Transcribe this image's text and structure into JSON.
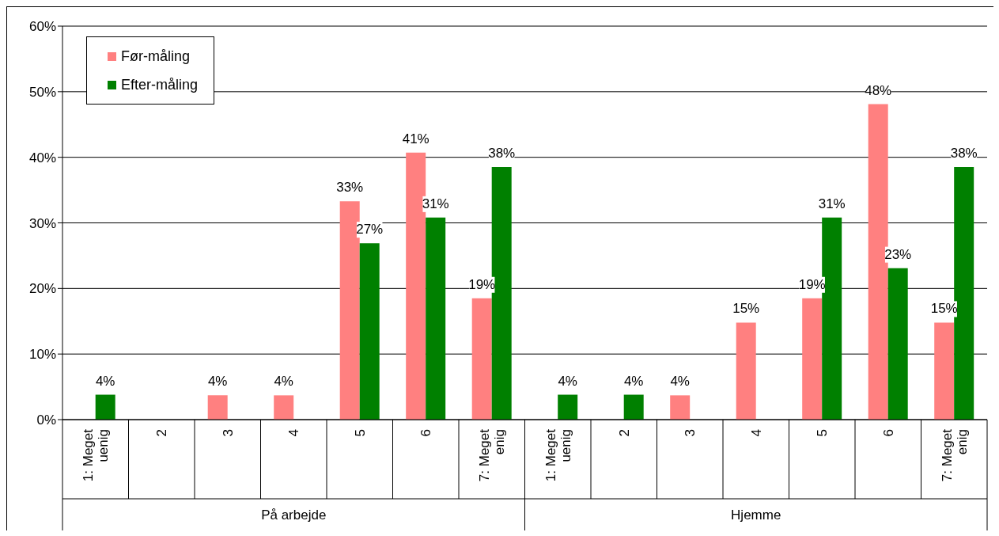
{
  "chart_data": {
    "type": "bar",
    "categories": [
      "1: Meget uenig",
      "2",
      "3",
      "4",
      "5",
      "6",
      "7: Meget enig",
      "1: Meget uenig",
      "2",
      "3",
      "4",
      "5",
      "6",
      "7: Meget enig"
    ],
    "series": [
      {
        "name": "Før-måling",
        "color": "#ff8080",
        "values": [
          null,
          null,
          3.7,
          3.7,
          33.3,
          40.7,
          18.5,
          null,
          null,
          3.7,
          14.8,
          18.5,
          48.1,
          14.8
        ],
        "value_labels": [
          null,
          null,
          "4%",
          "4%",
          "33%",
          "41%",
          "19%",
          null,
          null,
          "4%",
          "15%",
          "19%",
          "48%",
          "15%"
        ]
      },
      {
        "name": "Efter-måling",
        "color": "#008000",
        "values": [
          3.8,
          null,
          null,
          null,
          26.9,
          30.8,
          38.5,
          3.8,
          3.8,
          null,
          null,
          30.8,
          23.1,
          38.5
        ],
        "value_labels": [
          "4%",
          null,
          null,
          null,
          "27%",
          "31%",
          "38%",
          "4%",
          "4%",
          null,
          null,
          "31%",
          "23%",
          "38%"
        ]
      }
    ],
    "annotations": [
      "På arbejde",
      "Hjemme"
    ],
    "ylim": [
      0,
      60
    ],
    "yticks": [
      {
        "value": 0,
        "label": "0%"
      },
      {
        "value": 10,
        "label": "10%"
      },
      {
        "value": 20,
        "label": "20%"
      },
      {
        "value": 30,
        "label": "30%"
      },
      {
        "value": 40,
        "label": "40%"
      },
      {
        "value": 50,
        "label": "50%"
      },
      {
        "value": 60,
        "label": "60%"
      }
    ],
    "grid": "y",
    "legend": "top left"
  }
}
